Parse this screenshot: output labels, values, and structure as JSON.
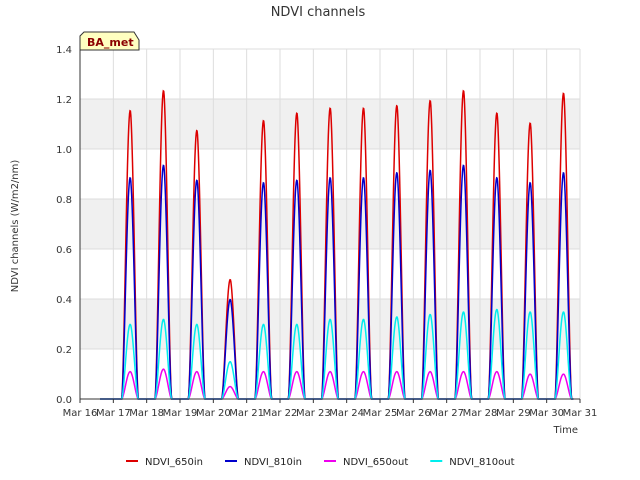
{
  "chart_data": {
    "type": "line",
    "title": "NDVI channels",
    "xlabel": "Time",
    "ylabel": "NDVI channels (W/m2/nm)",
    "badge": "BA_met",
    "ylim": [
      0,
      1.4
    ],
    "xlim": [
      16,
      31
    ],
    "y_ticks": [
      "0.0",
      "0.2",
      "0.4",
      "0.6",
      "0.8",
      "1.0",
      "1.2",
      "1.4"
    ],
    "x_ticks": [
      "Mar 16",
      "Mar 17",
      "Mar 18",
      "Mar 19",
      "Mar 20",
      "Mar 21",
      "Mar 22",
      "Mar 23",
      "Mar 24",
      "Mar 25",
      "Mar 26",
      "Mar 27",
      "Mar 28",
      "Mar 29",
      "Mar 30",
      "Mar 31"
    ],
    "grid": true,
    "legend_position": "bottom",
    "days": [
      17,
      18,
      19,
      20,
      21,
      22,
      23,
      24,
      25,
      26,
      27,
      28,
      29,
      30
    ],
    "series": [
      {
        "name": "NDVI_650in",
        "color": "#dd0000",
        "daily_peaks": [
          1.16,
          1.24,
          1.08,
          0.48,
          1.12,
          1.15,
          1.17,
          1.17,
          1.18,
          1.2,
          1.24,
          1.15,
          1.11,
          1.23
        ]
      },
      {
        "name": "NDVI_810in",
        "color": "#0000cc",
        "daily_peaks": [
          0.89,
          0.94,
          0.88,
          0.4,
          0.87,
          0.88,
          0.89,
          0.89,
          0.91,
          0.92,
          0.94,
          0.89,
          0.87,
          0.91
        ]
      },
      {
        "name": "NDVI_650out",
        "color": "#ee00ee",
        "daily_peaks": [
          0.11,
          0.12,
          0.11,
          0.05,
          0.11,
          0.11,
          0.11,
          0.11,
          0.11,
          0.11,
          0.11,
          0.11,
          0.1,
          0.1
        ]
      },
      {
        "name": "NDVI_810out",
        "color": "#00eeee",
        "daily_peaks": [
          0.3,
          0.32,
          0.3,
          0.15,
          0.3,
          0.3,
          0.32,
          0.32,
          0.33,
          0.34,
          0.35,
          0.36,
          0.35,
          0.35
        ]
      }
    ]
  }
}
